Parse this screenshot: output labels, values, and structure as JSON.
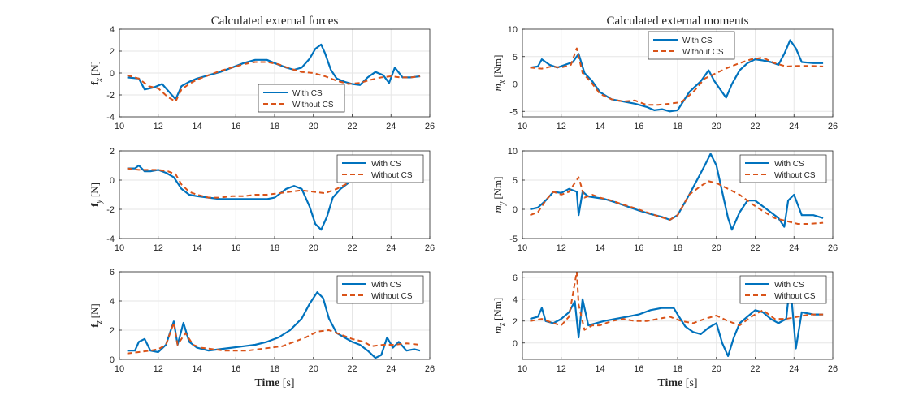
{
  "figure": {
    "title_forces": "Calculated external forces",
    "title_moments": "Calculated external moments",
    "xlabel_bold": "Time",
    "xlabel_unit": "[s]"
  },
  "colors": {
    "with_cs": "#0072BD",
    "without_cs": "#D95319",
    "grid": "#e6e6e6",
    "axis": "#262626"
  },
  "chart_data": [
    {
      "id": "fx",
      "type": "line",
      "grid": true,
      "legend_position": "bottom-center",
      "title": "Calculated external forces",
      "ylabel_sym": "f",
      "ylabel_sub": "x",
      "ylabel_unit": "[N]",
      "xlabel": "",
      "xlim": [
        10,
        26
      ],
      "ylim": [
        -4,
        4
      ],
      "xticks": [
        "10",
        "12",
        "14",
        "16",
        "18",
        "20",
        "22",
        "24",
        "26"
      ],
      "yticks": [
        "4",
        "2",
        "0",
        "-2",
        "-4"
      ],
      "series": [
        {
          "name": "With CS",
          "style": "solid",
          "x": [
            10.4,
            11.0,
            11.3,
            11.8,
            12.2,
            12.6,
            12.9,
            13.2,
            13.6,
            14.0,
            14.6,
            15.2,
            15.8,
            16.4,
            17.0,
            17.6,
            18.0,
            18.6,
            19.0,
            19.4,
            19.8,
            20.1,
            20.4,
            20.6,
            20.9,
            21.2,
            21.6,
            22.0,
            22.4,
            22.8,
            23.2,
            23.6,
            23.9,
            24.2,
            24.6,
            25.0,
            25.5
          ],
          "y": [
            -0.4,
            -0.5,
            -1.5,
            -1.3,
            -1.0,
            -1.8,
            -2.4,
            -1.2,
            -0.8,
            -0.5,
            -0.2,
            0.1,
            0.5,
            0.9,
            1.2,
            1.2,
            0.9,
            0.5,
            0.3,
            0.5,
            1.3,
            2.2,
            2.6,
            1.8,
            0.3,
            -0.5,
            -0.8,
            -1.0,
            -1.1,
            -0.4,
            0.1,
            -0.2,
            -0.9,
            0.5,
            -0.4,
            -0.4,
            -0.3
          ]
        },
        {
          "name": "Without CS",
          "style": "dashed",
          "x": [
            10.4,
            11.0,
            11.5,
            12.0,
            12.5,
            12.9,
            13.2,
            13.6,
            14.0,
            14.6,
            15.2,
            15.8,
            16.4,
            17.0,
            17.6,
            18.2,
            18.8,
            19.4,
            20.0,
            20.6,
            21.2,
            21.8,
            22.4,
            23.0,
            23.5,
            24.0,
            24.5,
            25.0,
            25.5
          ],
          "y": [
            -0.2,
            -0.5,
            -1.2,
            -1.4,
            -2.2,
            -2.6,
            -1.5,
            -1.0,
            -0.6,
            -0.2,
            0.2,
            0.5,
            0.8,
            1.0,
            1.0,
            0.8,
            0.4,
            0.1,
            0.0,
            -0.3,
            -0.7,
            -1.0,
            -0.9,
            -0.6,
            -0.4,
            -0.3,
            -0.4,
            -0.4,
            -0.3
          ]
        }
      ]
    },
    {
      "id": "mx",
      "type": "line",
      "grid": true,
      "legend_position": "top-center",
      "title": "Calculated external moments",
      "ylabel_sym": "m",
      "ylabel_sub": "x",
      "ylabel_unit": "[Nm]",
      "xlabel": "",
      "xlim": [
        10,
        26
      ],
      "ylim": [
        -6,
        10
      ],
      "xticks": [
        "10",
        "12",
        "14",
        "16",
        "18",
        "20",
        "22",
        "24",
        "26"
      ],
      "yticks": [
        "10",
        "5",
        "0",
        "-5"
      ],
      "series": [
        {
          "name": "With CS",
          "style": "solid",
          "x": [
            10.4,
            10.8,
            11.0,
            11.4,
            11.8,
            12.2,
            12.6,
            12.9,
            13.2,
            13.6,
            14.0,
            14.6,
            15.2,
            15.8,
            16.4,
            16.8,
            17.2,
            17.6,
            18.0,
            18.6,
            19.2,
            19.6,
            19.9,
            20.2,
            20.5,
            20.8,
            21.2,
            21.6,
            22.0,
            22.4,
            22.8,
            23.2,
            23.5,
            23.8,
            24.1,
            24.4,
            25.0,
            25.5
          ],
          "y": [
            3.0,
            3.2,
            4.5,
            3.5,
            3.0,
            3.5,
            4.0,
            5.5,
            2.0,
            0.5,
            -1.5,
            -2.8,
            -3.2,
            -3.6,
            -4.2,
            -4.8,
            -4.6,
            -5.0,
            -4.8,
            -1.5,
            0.5,
            2.5,
            0.5,
            -1.0,
            -2.5,
            0.0,
            2.5,
            3.8,
            4.5,
            4.3,
            4.0,
            3.5,
            5.5,
            8.0,
            6.5,
            4.0,
            3.8,
            3.8
          ]
        },
        {
          "name": "Without CS",
          "style": "dashed",
          "x": [
            10.4,
            11.0,
            11.5,
            12.0,
            12.5,
            12.8,
            13.1,
            13.5,
            14.0,
            14.6,
            15.2,
            15.8,
            16.4,
            17.0,
            17.6,
            18.2,
            18.8,
            19.4,
            20.0,
            20.6,
            21.2,
            21.8,
            22.4,
            23.0,
            23.6,
            24.2,
            24.8,
            25.5
          ],
          "y": [
            3.0,
            2.8,
            3.2,
            3.0,
            3.5,
            6.5,
            2.0,
            0.5,
            -1.8,
            -2.8,
            -3.2,
            -3.0,
            -3.8,
            -3.8,
            -3.6,
            -3.3,
            -1.5,
            1.0,
            2.0,
            3.0,
            3.8,
            4.5,
            4.8,
            3.8,
            3.2,
            3.3,
            3.3,
            3.2
          ]
        }
      ]
    },
    {
      "id": "fy",
      "type": "line",
      "grid": true,
      "legend_position": "top-right",
      "ylabel_sym": "f",
      "ylabel_sub": "y",
      "ylabel_unit": "[N]",
      "xlabel": "",
      "xlim": [
        10,
        26
      ],
      "ylim": [
        -4,
        2
      ],
      "xticks": [
        "10",
        "12",
        "14",
        "16",
        "18",
        "20",
        "22",
        "24",
        "26"
      ],
      "yticks": [
        "2",
        "0",
        "-2",
        "-4"
      ],
      "series": [
        {
          "name": "With CS",
          "style": "solid",
          "x": [
            10.4,
            10.8,
            11.0,
            11.3,
            11.6,
            12.0,
            12.4,
            12.8,
            13.2,
            13.6,
            14.0,
            14.6,
            15.2,
            15.8,
            16.4,
            17.0,
            17.6,
            18.0,
            18.6,
            19.0,
            19.4,
            19.8,
            20.1,
            20.4,
            20.7,
            21.0,
            21.4,
            21.8,
            22.2,
            22.6,
            23.0,
            23.4,
            23.8,
            24.1,
            24.4,
            25.0,
            25.5
          ],
          "y": [
            0.8,
            0.8,
            1.0,
            0.6,
            0.6,
            0.7,
            0.5,
            0.2,
            -0.6,
            -1.0,
            -1.1,
            -1.2,
            -1.3,
            -1.3,
            -1.3,
            -1.3,
            -1.3,
            -1.2,
            -0.6,
            -0.4,
            -0.6,
            -1.8,
            -3.0,
            -3.4,
            -2.5,
            -1.2,
            -0.6,
            -0.2,
            0.2,
            0.5,
            0.7,
            0.9,
            1.5,
            1.2,
            0.9,
            0.9,
            0.9
          ]
        },
        {
          "name": "Without CS",
          "style": "dashed",
          "x": [
            10.4,
            11.0,
            11.6,
            12.0,
            12.5,
            12.9,
            13.2,
            13.6,
            14.0,
            14.6,
            15.2,
            15.8,
            16.4,
            17.0,
            17.6,
            18.2,
            18.8,
            19.4,
            20.0,
            20.6,
            21.2,
            21.8,
            22.4,
            23.0,
            23.6,
            24.2,
            24.8,
            25.5
          ],
          "y": [
            0.8,
            0.7,
            0.7,
            0.7,
            0.6,
            0.4,
            -0.3,
            -0.8,
            -1.0,
            -1.2,
            -1.2,
            -1.1,
            -1.1,
            -1.0,
            -1.0,
            -0.9,
            -0.8,
            -0.7,
            -0.8,
            -0.9,
            -0.6,
            -0.2,
            0.3,
            0.6,
            0.8,
            1.0,
            0.9,
            0.9
          ]
        }
      ]
    },
    {
      "id": "my",
      "type": "line",
      "grid": true,
      "legend_position": "top-right",
      "ylabel_sym": "m",
      "ylabel_sub": "y",
      "ylabel_unit": "[Nm]",
      "xlabel": "",
      "xlim": [
        10,
        26
      ],
      "ylim": [
        -5,
        10
      ],
      "xticks": [
        "10",
        "12",
        "14",
        "16",
        "18",
        "20",
        "22",
        "24",
        "26"
      ],
      "yticks": [
        "10",
        "5",
        "0",
        "-5"
      ],
      "series": [
        {
          "name": "With CS",
          "style": "solid",
          "x": [
            10.4,
            10.8,
            11.2,
            11.6,
            12.0,
            12.4,
            12.8,
            12.9,
            13.1,
            13.4,
            13.8,
            14.2,
            14.8,
            15.4,
            16.0,
            16.6,
            17.2,
            17.6,
            18.0,
            18.6,
            19.0,
            19.4,
            19.7,
            20.0,
            20.3,
            20.6,
            20.8,
            21.2,
            21.6,
            22.0,
            22.4,
            22.8,
            23.2,
            23.5,
            23.7,
            24.0,
            24.4,
            25.0,
            25.5
          ],
          "y": [
            0.0,
            0.3,
            1.5,
            3.0,
            2.8,
            3.5,
            3.0,
            -1.0,
            3.0,
            2.2,
            2.0,
            1.8,
            1.2,
            0.5,
            -0.2,
            -0.8,
            -1.3,
            -1.8,
            -1.0,
            2.5,
            5.0,
            7.5,
            9.5,
            7.5,
            3.0,
            -1.5,
            -3.5,
            -0.5,
            1.5,
            1.5,
            0.5,
            -0.5,
            -1.5,
            -3.0,
            1.5,
            2.5,
            -1.0,
            -1.0,
            -1.5
          ]
        },
        {
          "name": "Without CS",
          "style": "dashed",
          "x": [
            10.4,
            10.8,
            11.2,
            11.6,
            12.0,
            12.4,
            12.9,
            13.2,
            13.6,
            14.0,
            14.6,
            15.2,
            15.8,
            16.4,
            17.0,
            17.6,
            18.0,
            18.6,
            19.2,
            19.6,
            20.0,
            20.6,
            21.2,
            21.8,
            22.4,
            23.0,
            23.6,
            24.2,
            24.8,
            25.5
          ],
          "y": [
            -1.0,
            -0.5,
            1.5,
            3.0,
            2.5,
            3.0,
            5.5,
            2.0,
            2.5,
            2.0,
            1.5,
            0.8,
            0.2,
            -0.5,
            -1.2,
            -1.8,
            -1.0,
            2.5,
            4.0,
            4.8,
            4.5,
            3.5,
            2.5,
            1.0,
            -0.3,
            -1.5,
            -2.0,
            -2.5,
            -2.5,
            -2.3
          ]
        }
      ]
    },
    {
      "id": "fz",
      "type": "line",
      "grid": true,
      "legend_position": "top-right",
      "ylabel_sym": "f",
      "ylabel_sub": "z",
      "ylabel_unit": "[N]",
      "xlabel": "Time [s]",
      "xlim": [
        10,
        26
      ],
      "ylim": [
        0,
        6
      ],
      "xticks": [
        "10",
        "12",
        "14",
        "16",
        "18",
        "20",
        "22",
        "24",
        "26"
      ],
      "yticks": [
        "6",
        "4",
        "2",
        "0"
      ],
      "series": [
        {
          "name": "With CS",
          "style": "solid",
          "x": [
            10.4,
            10.8,
            11.0,
            11.3,
            11.6,
            12.0,
            12.4,
            12.8,
            13.0,
            13.3,
            13.6,
            14.0,
            14.6,
            15.2,
            15.8,
            16.4,
            17.0,
            17.6,
            18.2,
            18.8,
            19.4,
            19.8,
            20.2,
            20.5,
            20.8,
            21.2,
            21.6,
            22.0,
            22.4,
            22.8,
            23.2,
            23.5,
            23.8,
            24.1,
            24.4,
            24.8,
            25.2,
            25.5
          ],
          "y": [
            0.6,
            0.6,
            1.2,
            1.4,
            0.6,
            0.5,
            1.0,
            2.6,
            1.0,
            2.5,
            1.2,
            0.8,
            0.6,
            0.7,
            0.8,
            0.9,
            1.0,
            1.2,
            1.5,
            2.0,
            2.8,
            3.8,
            4.6,
            4.2,
            2.8,
            1.8,
            1.5,
            1.2,
            1.0,
            0.6,
            0.1,
            0.3,
            1.5,
            0.8,
            1.2,
            0.6,
            0.7,
            0.6
          ]
        },
        {
          "name": "Without CS",
          "style": "dashed",
          "x": [
            10.4,
            11.0,
            11.6,
            12.0,
            12.4,
            12.8,
            13.0,
            13.4,
            13.8,
            14.2,
            14.8,
            15.4,
            16.0,
            16.6,
            17.2,
            17.8,
            18.4,
            19.0,
            19.6,
            20.2,
            20.8,
            21.4,
            22.0,
            22.6,
            23.0,
            23.6,
            24.2,
            24.8,
            25.5
          ],
          "y": [
            0.4,
            0.5,
            0.6,
            0.7,
            1.0,
            2.5,
            1.0,
            1.8,
            1.0,
            0.8,
            0.7,
            0.6,
            0.6,
            0.6,
            0.7,
            0.8,
            0.9,
            1.2,
            1.5,
            1.9,
            2.0,
            1.7,
            1.4,
            1.2,
            0.9,
            1.0,
            1.0,
            1.1,
            1.0
          ]
        }
      ]
    },
    {
      "id": "mz",
      "type": "line",
      "grid": true,
      "legend_position": "top-right",
      "ylabel_sym": "m",
      "ylabel_sub": "z",
      "ylabel_unit": "[Nm]",
      "xlabel": "Time [s]",
      "xlim": [
        10,
        26
      ],
      "ylim": [
        -1.5,
        6.5
      ],
      "xticks": [
        "10",
        "12",
        "14",
        "16",
        "18",
        "20",
        "22",
        "24",
        "26"
      ],
      "yticks": [
        "6",
        "4",
        "2",
        "0"
      ],
      "series": [
        {
          "name": "With CS",
          "style": "solid",
          "x": [
            10.4,
            10.8,
            11.0,
            11.2,
            11.6,
            12.0,
            12.4,
            12.7,
            12.9,
            13.1,
            13.4,
            13.8,
            14.2,
            14.8,
            15.4,
            16.0,
            16.6,
            17.2,
            17.8,
            18.0,
            18.4,
            18.8,
            19.2,
            19.6,
            20.0,
            20.3,
            20.6,
            20.9,
            21.2,
            21.6,
            22.0,
            22.4,
            22.8,
            23.2,
            23.6,
            23.8,
            24.1,
            24.4,
            25.0,
            25.5
          ],
          "y": [
            2.2,
            2.4,
            3.2,
            2.0,
            1.8,
            2.2,
            2.8,
            3.8,
            0.5,
            4.0,
            1.6,
            1.8,
            2.0,
            2.2,
            2.4,
            2.6,
            3.0,
            3.2,
            3.2,
            2.6,
            1.5,
            1.0,
            0.8,
            1.4,
            1.8,
            0.0,
            -1.2,
            0.5,
            1.8,
            2.4,
            3.0,
            2.8,
            2.2,
            1.8,
            2.2,
            5.5,
            -0.5,
            2.8,
            2.6,
            2.6
          ]
        },
        {
          "name": "Without CS",
          "style": "dashed",
          "x": [
            10.4,
            11.0,
            11.6,
            12.0,
            12.4,
            12.8,
            12.9,
            13.2,
            13.6,
            14.0,
            14.6,
            15.2,
            15.8,
            16.4,
            17.0,
            17.6,
            18.2,
            18.8,
            19.4,
            20.0,
            20.6,
            21.2,
            21.8,
            22.4,
            23.0,
            23.6,
            24.2,
            24.8,
            25.5
          ],
          "y": [
            2.0,
            2.2,
            1.8,
            1.6,
            2.4,
            6.5,
            3.5,
            1.2,
            1.6,
            1.6,
            2.0,
            2.2,
            2.0,
            2.0,
            2.2,
            2.4,
            2.0,
            1.8,
            2.2,
            2.5,
            2.0,
            1.6,
            2.4,
            3.0,
            2.2,
            2.2,
            2.4,
            2.6,
            2.6
          ]
        }
      ]
    }
  ]
}
